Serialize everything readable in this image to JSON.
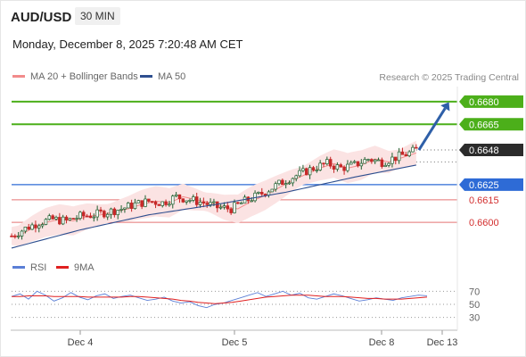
{
  "header": {
    "symbol": "AUD/USD",
    "timeframe": "30 MIN"
  },
  "datetime": "Monday, December 8, 2025 7:20:48 AM CET",
  "legend": {
    "items": [
      {
        "label": "MA 20 + Bollinger Bands",
        "color": "#f28b8b"
      },
      {
        "label": "MA 50",
        "color": "#2e4f8f"
      }
    ],
    "credit": "Research © 2025 Trading Central"
  },
  "rsi_legend": {
    "items": [
      {
        "label": "RSI",
        "color": "#5b7fd6"
      },
      {
        "label": "9MA",
        "color": "#e02020"
      }
    ]
  },
  "colors": {
    "green_level": "#4caf1a",
    "blue_level": "#2e6bd6",
    "red_level": "#e57373",
    "candle_up": "#1f5f2f",
    "candle_down": "#c62828",
    "arrow": "#2e5fa8",
    "band_fill": "#fbe3e3"
  },
  "chart_data": [
    {
      "type": "candlestick",
      "title": "",
      "x_ticks": [
        "Dec 4",
        "Dec 5",
        "Dec 8",
        "Dec 13"
      ],
      "ylim": [
        0.658,
        0.669
      ],
      "levels": [
        {
          "value": 0.668,
          "label": "0.6680",
          "kind": "resistance"
        },
        {
          "value": 0.6665,
          "label": "0.6665",
          "kind": "resistance"
        },
        {
          "value": 0.6648,
          "label": "0.6648",
          "kind": "last"
        },
        {
          "value": 0.6625,
          "label": "0.6625",
          "kind": "pivot"
        },
        {
          "value": 0.6615,
          "label": "0.6615",
          "kind": "support"
        },
        {
          "value": 0.66,
          "label": "0.6600",
          "kind": "support"
        }
      ],
      "price_path": [
        [
          0,
          0.6591
        ],
        [
          4,
          0.6596
        ],
        [
          8,
          0.66
        ],
        [
          12,
          0.6602
        ],
        [
          16,
          0.6601
        ],
        [
          20,
          0.6604
        ],
        [
          24,
          0.6605
        ],
        [
          28,
          0.6607
        ],
        [
          32,
          0.6609
        ],
        [
          36,
          0.6612
        ],
        [
          40,
          0.6614
        ],
        [
          44,
          0.6613
        ],
        [
          48,
          0.6617
        ],
        [
          52,
          0.6615
        ],
        [
          56,
          0.6613
        ],
        [
          60,
          0.661
        ],
        [
          64,
          0.6609
        ],
        [
          68,
          0.6614
        ],
        [
          72,
          0.6618
        ],
        [
          76,
          0.6623
        ],
        [
          80,
          0.6628
        ],
        [
          84,
          0.6632
        ],
        [
          88,
          0.6636
        ],
        [
          92,
          0.6639
        ],
        [
          96,
          0.6636
        ],
        [
          100,
          0.6638
        ],
        [
          104,
          0.6642
        ],
        [
          108,
          0.664
        ],
        [
          112,
          0.6643
        ],
        [
          116,
          0.6646
        ],
        [
          118,
          0.6648
        ]
      ],
      "ma50_path": [
        [
          0,
          0.6583
        ],
        [
          20,
          0.6595
        ],
        [
          40,
          0.6605
        ],
        [
          60,
          0.6612
        ],
        [
          80,
          0.662
        ],
        [
          100,
          0.663
        ],
        [
          118,
          0.6638
        ]
      ],
      "projection": {
        "from": [
          118,
          0.6648
        ],
        "to": [
          128,
          0.6678
        ]
      }
    },
    {
      "type": "line",
      "title": "",
      "ylim": [
        20,
        80
      ],
      "y_ticks": [
        70,
        50,
        30
      ],
      "series": [
        {
          "name": "RSI",
          "values": [
            62,
            66,
            58,
            70,
            64,
            55,
            60,
            68,
            61,
            57,
            63,
            66,
            59,
            62,
            64,
            60,
            56,
            58,
            61,
            55,
            52,
            54,
            48,
            45,
            50,
            52,
            56,
            60,
            64,
            68,
            62,
            66,
            70,
            64,
            67,
            60,
            58,
            62,
            66,
            63,
            59,
            55,
            57,
            60,
            58,
            56,
            60,
            62,
            64,
            63
          ]
        },
        {
          "name": "9MA",
          "values": [
            62,
            62,
            63,
            63,
            63,
            62,
            62,
            62,
            62,
            61,
            61,
            61,
            61,
            61,
            62,
            62,
            61,
            60,
            59,
            58,
            56,
            55,
            53,
            52,
            51,
            52,
            53,
            55,
            57,
            59,
            61,
            62,
            63,
            64,
            64,
            64,
            63,
            62,
            62,
            62,
            61,
            60,
            59,
            59,
            58,
            58,
            58,
            59,
            60,
            61
          ]
        }
      ]
    }
  ]
}
